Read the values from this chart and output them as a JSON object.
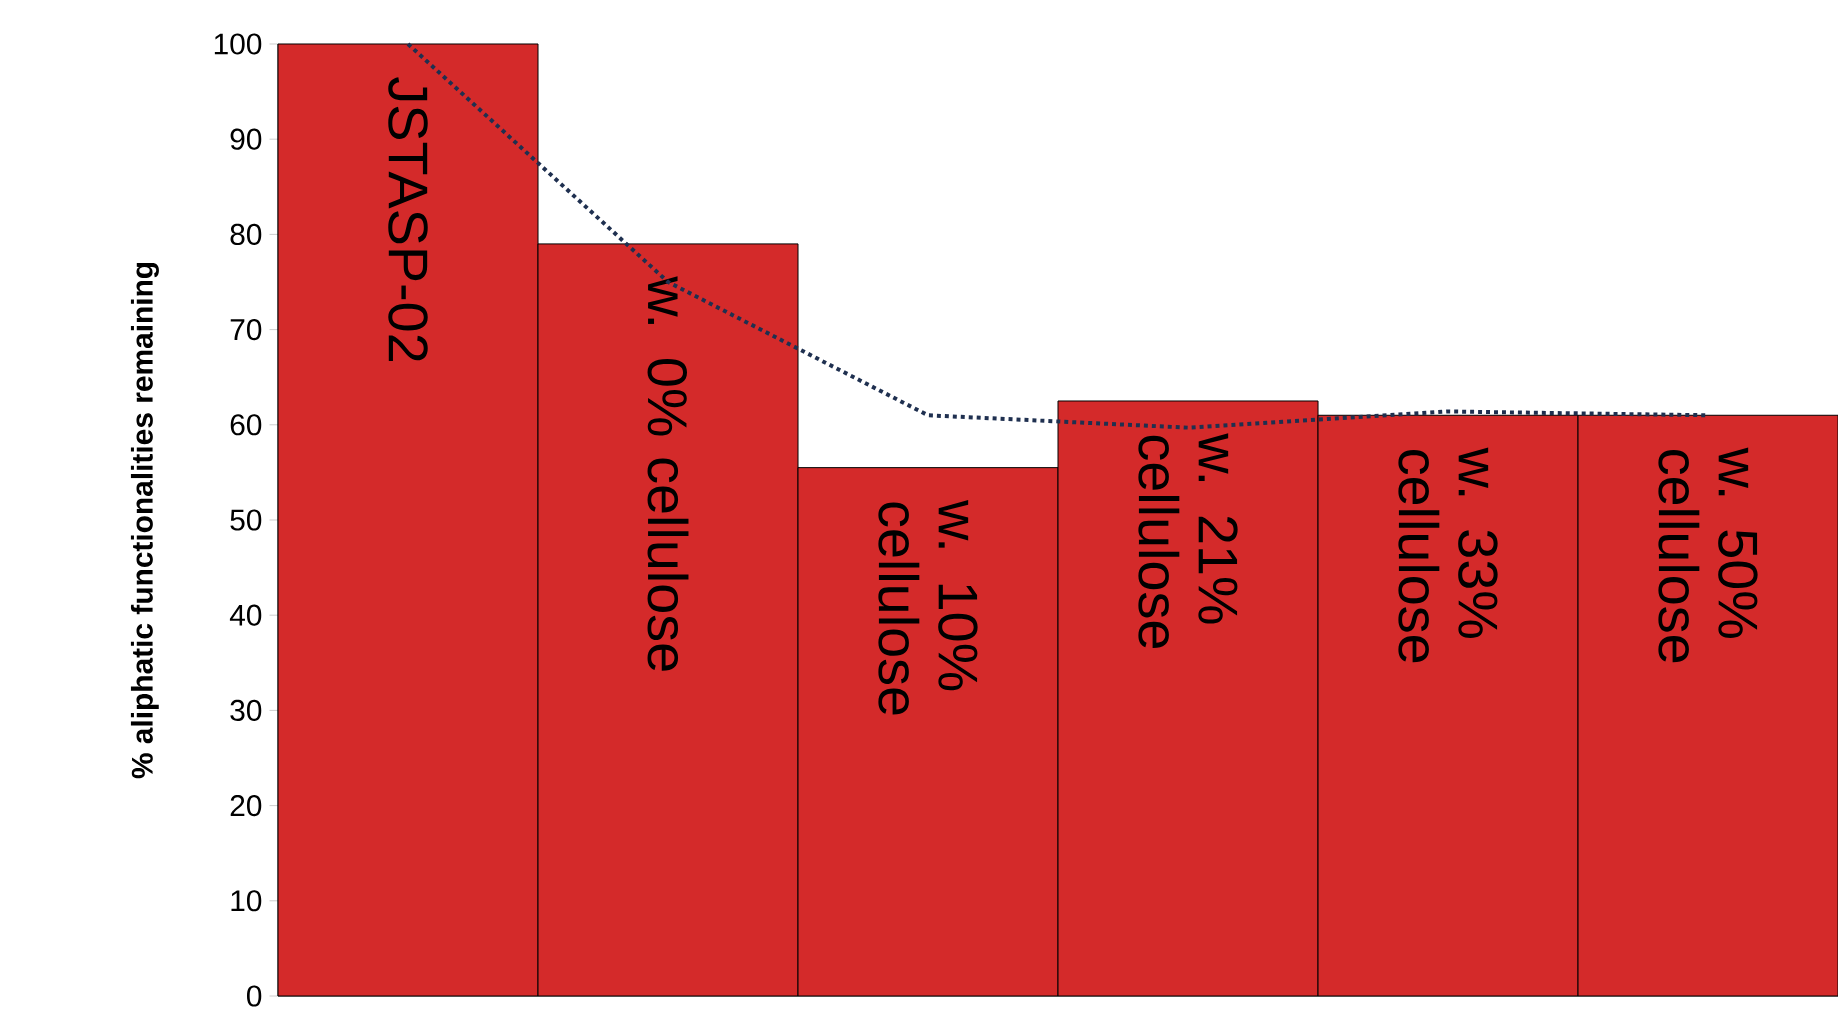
{
  "chart_data": {
    "type": "bar",
    "ylabel": "% aliphatic functionalities remaining",
    "categories": [
      "JSTASP-02",
      "w. 0% cellulose",
      "w. 10% cellulose",
      "w. 21% cellulose",
      "w. 33% cellulose",
      "w. 50% cellulose"
    ],
    "series": [
      {
        "color": "#d42a2a",
        "values": [
          100,
          79,
          55.5,
          62.5,
          61,
          61
        ]
      },
      {
        "type": "line",
        "color": "#1f3050",
        "line_style": "dotted",
        "values": [
          100,
          75,
          61,
          59.7,
          61.4,
          61
        ]
      }
    ],
    "ylim": [
      0,
      100
    ],
    "yticks": [
      0,
      10,
      20,
      30,
      40,
      50,
      60,
      70,
      80,
      90,
      100
    ],
    "grid": false,
    "tick_labels": "y"
  }
}
